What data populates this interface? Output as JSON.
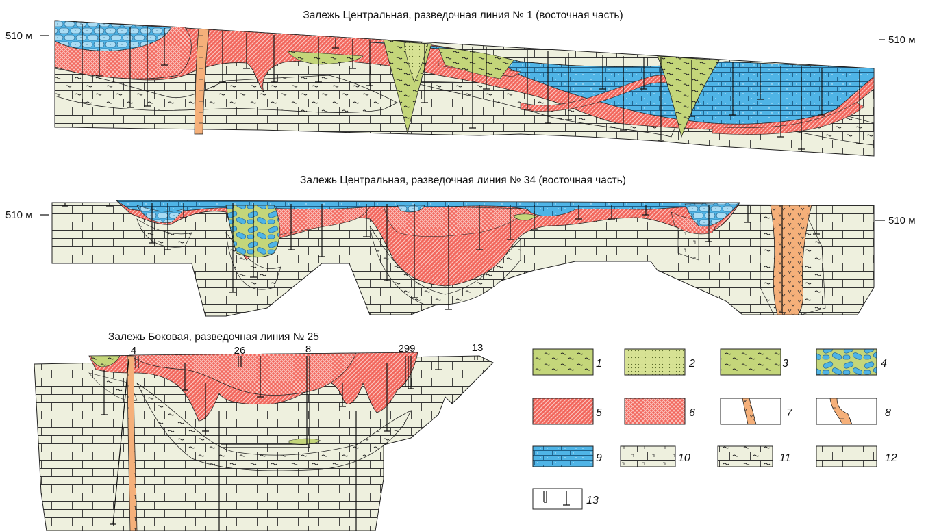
{
  "sections": [
    {
      "title": "Залежь Центральная, разведочная линия № 1 (восточная часть)",
      "elev_left": "510 м",
      "elev_right": "510 м"
    },
    {
      "title": "Залежь Центральная, разведочная линия № 34 (восточная часть)",
      "elev_left": "510 м",
      "elev_right": "510 м"
    },
    {
      "title": "Залежь Боковая, разведочная линия № 25",
      "wells": [
        "4",
        "26",
        "8",
        "299",
        "13"
      ]
    }
  ],
  "legend": [
    {
      "num": "1",
      "pattern": "green-dash"
    },
    {
      "num": "2",
      "pattern": "green-dots"
    },
    {
      "num": "3",
      "pattern": "green-dash-dense"
    },
    {
      "num": "4",
      "pattern": "blue-green-pods"
    },
    {
      "num": "5",
      "pattern": "red-hatch"
    },
    {
      "num": "6",
      "pattern": "red-crosshatch"
    },
    {
      "num": "7",
      "pattern": "orange-dyke-v"
    },
    {
      "num": "8",
      "pattern": "orange-dyke-t"
    },
    {
      "num": "9",
      "pattern": "blue-brick-dots"
    },
    {
      "num": "10",
      "pattern": "brick-corners"
    },
    {
      "num": "11",
      "pattern": "brick-dash"
    },
    {
      "num": "12",
      "pattern": "brick"
    },
    {
      "num": "13",
      "pattern": "well-symbols"
    }
  ],
  "colors": {
    "limestone": "#eef0de",
    "red": "#f2665c",
    "blue": "#4fb4e6",
    "green": "#c4d67a",
    "green_light": "#d7e294",
    "orange": "#f5b07a"
  }
}
